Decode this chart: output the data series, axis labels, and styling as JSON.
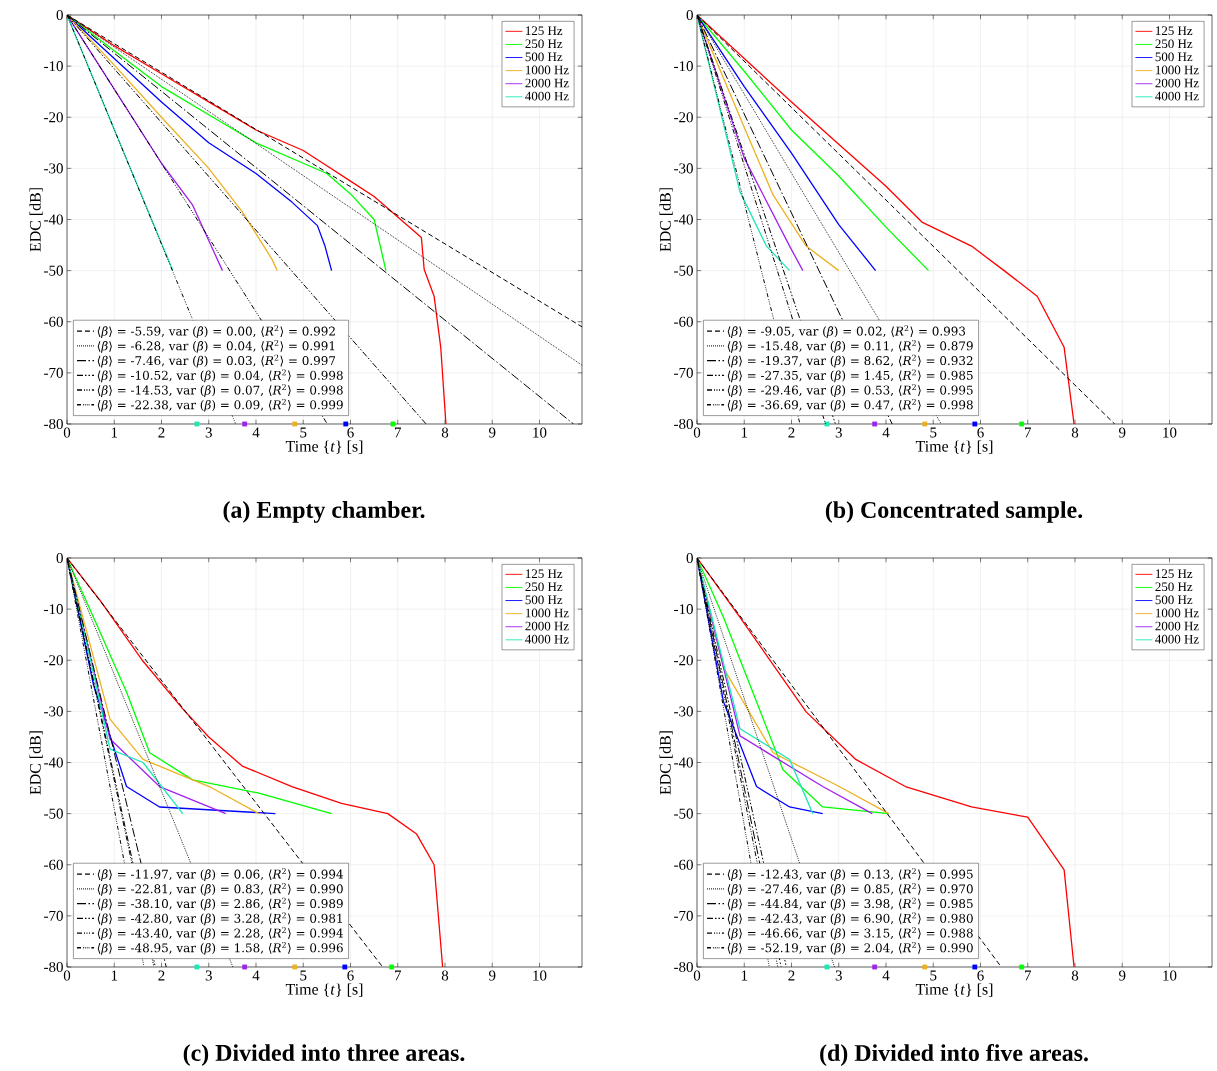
{
  "chart_data": [
    {
      "type": "line",
      "title": "(a) Empty chamber.",
      "xlabel": "Time {*t*} [s]",
      "ylabel": "EDC [dB]",
      "xlim": [
        0,
        10.9
      ],
      "ylim": [
        -80,
        0
      ],
      "xticks": [
        0,
        1,
        2,
        3,
        4,
        5,
        6,
        7,
        8,
        9,
        10
      ],
      "yticks": [
        -80,
        -70,
        -60,
        -50,
        -40,
        -30,
        -20,
        -10,
        0
      ],
      "grid": true,
      "legend": "top right",
      "series": [
        {
          "name": "125 Hz",
          "color": "#ff0000",
          "x": [
            0,
            1,
            2,
            3,
            4,
            5,
            5.5,
            6,
            6.5,
            7,
            7.5,
            7.56,
            7.77,
            7.91,
            8.02
          ],
          "values": [
            0,
            -6,
            -11.5,
            -17,
            -22.5,
            -26.5,
            -29.5,
            -32.5,
            -35.5,
            -39.5,
            -43.5,
            -49.8,
            -55,
            -65,
            -80
          ]
        },
        {
          "name": "250 Hz",
          "color": "#00ff00",
          "x": [
            0,
            1,
            2,
            3,
            4,
            5,
            5.5,
            6,
            6.5,
            6.75
          ],
          "values": [
            0,
            -7,
            -14,
            -19.5,
            -25,
            -29,
            -31,
            -35,
            -40,
            -50
          ]
        },
        {
          "name": "500 Hz",
          "color": "#0000ff",
          "x": [
            0,
            1,
            2,
            3,
            4,
            4.76,
            5.3,
            5.46,
            5.6
          ],
          "values": [
            0,
            -8.5,
            -17,
            -25,
            -31,
            -36.6,
            -41.2,
            -45.2,
            -50
          ]
        },
        {
          "name": "1000 Hz",
          "color": "#edb120",
          "x": [
            0,
            1,
            2,
            3,
            3.71,
            4.34,
            4.45
          ],
          "values": [
            0,
            -9.8,
            -20,
            -30,
            -38.5,
            -47.8,
            -50
          ]
        },
        {
          "name": "2000 Hz",
          "color": "#a020f0",
          "x": [
            0,
            1,
            2,
            2.66,
            3.29
          ],
          "values": [
            0,
            -14.5,
            -29,
            -37.2,
            -50
          ]
        },
        {
          "name": "4000 Hz",
          "color": "#1ce8b5",
          "x": [
            0,
            1,
            2.24
          ],
          "values": [
            0,
            -22.4,
            -50
          ]
        },
        {
          "type": "scatter",
          "marker": "square",
          "x": [
            2.75,
            3.76,
            4.82,
            5.9,
            6.9
          ],
          "values": [
            -80,
            -80,
            -80,
            -80,
            -80
          ],
          "colors": [
            "#1ce8b5",
            "#a020f0",
            "#edb120",
            "#0000ff",
            "#00ff00"
          ]
        },
        {
          "type": "line",
          "color": "#000000",
          "line_style": "dashed",
          "name": "⟨*β*⟩ = -5.59, var (*β*) = 0.00, ⟨*R*$^{2}$⟩ = 0.992",
          "x": [
            0,
            10.9
          ],
          "values": [
            0,
            -61
          ]
        },
        {
          "type": "line",
          "color": "#000000",
          "line_style": "dotted",
          "name": "⟨*β*⟩ = -6.28, var (*β*) = 0.04, ⟨*R*$^{2}$⟩ = 0.991",
          "x": [
            0,
            10.9
          ],
          "values": [
            0,
            -68.5
          ]
        },
        {
          "type": "line",
          "color": "#000000",
          "line_style": "dashdot",
          "name": "⟨*β*⟩ = -7.46, var (*β*) = 0.03, ⟨*R*$^{2}$⟩ = 0.997",
          "x": [
            0,
            10.72
          ],
          "values": [
            0,
            -80
          ]
        },
        {
          "type": "line",
          "color": "#000000",
          "line_style": "dashdotdot",
          "name": "⟨*β*⟩ = -10.52, var (*β*) = 0.04, ⟨*R*$^{2}$⟩ = 0.998",
          "x": [
            0,
            7.6
          ],
          "values": [
            0,
            -80
          ]
        },
        {
          "type": "line",
          "color": "#000000",
          "line_style": "dashdotdotdot",
          "name": "⟨*β*⟩ = -14.53, var (*β*) = 0.07, ⟨*R*$^{2}$⟩ = 0.998",
          "x": [
            0,
            5.51
          ],
          "values": [
            0,
            -80
          ]
        },
        {
          "type": "line",
          "color": "#000000",
          "line_style": "dashdotdotdotdot",
          "name": "⟨*β*⟩ = -22.38, var (*β*) = 0.09, ⟨*R*$^{2}$⟩ = 0.999",
          "x": [
            0,
            3.57
          ],
          "values": [
            0,
            -80
          ]
        }
      ]
    },
    {
      "type": "line",
      "title": "(b) Concentrated sample.",
      "xlabel": "Time {*t*} [s]",
      "ylabel": "EDC [dB]",
      "xlim": [
        0,
        10.9
      ],
      "ylim": [
        -80,
        0
      ],
      "xticks": [
        0,
        1,
        2,
        3,
        4,
        5,
        6,
        7,
        8,
        9,
        10
      ],
      "yticks": [
        -80,
        -70,
        -60,
        -50,
        -40,
        -30,
        -20,
        -10,
        0
      ],
      "grid": true,
      "legend": "top right",
      "series": [
        {
          "name": "125 Hz",
          "color": "#ff0000",
          "x": [
            0,
            1,
            2,
            3,
            4,
            4.76,
            5.81,
            6.5,
            7.2,
            7.77,
            7.98
          ],
          "values": [
            0,
            -8.5,
            -17,
            -25.3,
            -33.5,
            -40.5,
            -45.2,
            -50,
            -55,
            -65,
            -80
          ]
        },
        {
          "name": "250 Hz",
          "color": "#00ff00",
          "x": [
            0,
            1,
            2,
            3,
            4,
            4.9
          ],
          "values": [
            0,
            -11,
            -22.5,
            -31.5,
            -41.5,
            -50
          ]
        },
        {
          "name": "500 Hz",
          "color": "#0000ff",
          "x": [
            0,
            1,
            2,
            3,
            3.78
          ],
          "values": [
            0,
            -14,
            -27,
            -41,
            -50
          ]
        },
        {
          "name": "1000 Hz",
          "color": "#edb120",
          "x": [
            0,
            1,
            1.61,
            2.31,
            3.0
          ],
          "values": [
            0,
            -22,
            -35.2,
            -45.2,
            -50
          ]
        },
        {
          "name": "2000 Hz",
          "color": "#a020f0",
          "x": [
            0,
            1,
            1.96,
            2.24
          ],
          "values": [
            0,
            -28,
            -45.2,
            -50
          ]
        },
        {
          "name": "4000 Hz",
          "color": "#1ce8b5",
          "x": [
            0,
            0.91,
            1.47,
            1.96
          ],
          "values": [
            0,
            -34.6,
            -45.2,
            -50
          ]
        },
        {
          "type": "scatter",
          "marker": "square",
          "x": [
            2.75,
            3.76,
            4.82,
            5.88,
            6.87
          ],
          "values": [
            -80,
            -80,
            -80,
            -80,
            -80
          ],
          "colors": [
            "#1ce8b5",
            "#a020f0",
            "#edb120",
            "#0000ff",
            "#00ff00"
          ]
        },
        {
          "type": "line",
          "color": "#000000",
          "line_style": "dashed",
          "name": "⟨*β*⟩ = -9.05, var (*β*) = 0.02, ⟨*R*$^{2}$⟩ = 0.993",
          "x": [
            0,
            8.84
          ],
          "values": [
            0,
            -80
          ]
        },
        {
          "type": "line",
          "color": "#000000",
          "line_style": "dotted",
          "name": "⟨*β*⟩ = -15.48, var (*β*) = 0.11, ⟨*R*$^{2}$⟩ = 0.879",
          "x": [
            0,
            5.17
          ],
          "values": [
            0,
            -80
          ]
        },
        {
          "type": "line",
          "color": "#000000",
          "line_style": "dashdot",
          "name": "⟨*β*⟩ = -19.37, var (*β*) = 8.62, ⟨*R*$^{2}$⟩ = 0.932",
          "x": [
            0,
            4.13
          ],
          "values": [
            0,
            -80
          ]
        },
        {
          "type": "line",
          "color": "#000000",
          "line_style": "dashdotdot",
          "name": "⟨*β*⟩ = -27.35, var (*β*) = 1.45, ⟨*R*$^{2}$⟩ = 0.985",
          "x": [
            0,
            2.93
          ],
          "values": [
            0,
            -80
          ]
        },
        {
          "type": "line",
          "color": "#000000",
          "line_style": "dashdotdotdot",
          "name": "⟨*β*⟩ = -29.46, var (*β*) = 0.53, ⟨*R*$^{2}$⟩ = 0.995",
          "x": [
            0,
            2.72
          ],
          "values": [
            0,
            -80
          ]
        },
        {
          "type": "line",
          "color": "#000000",
          "line_style": "dashdotdotdotdot",
          "name": "⟨*β*⟩ = -36.69, var (*β*) = 0.47, ⟨*R*$^{2}$⟩ = 0.998",
          "x": [
            0,
            2.18
          ],
          "values": [
            0,
            -80
          ]
        }
      ]
    },
    {
      "type": "line",
      "title": "(c) Divided into three areas.",
      "xlabel": "Time {*t*} [s]",
      "ylabel": "EDC [dB]",
      "xlim": [
        0,
        10.9
      ],
      "ylim": [
        -80,
        0
      ],
      "xticks": [
        0,
        1,
        2,
        3,
        4,
        5,
        6,
        7,
        8,
        9,
        10
      ],
      "yticks": [
        -80,
        -70,
        -60,
        -50,
        -40,
        -30,
        -20,
        -10,
        0
      ],
      "grid": true,
      "legend": "top right",
      "series": [
        {
          "name": "125 Hz",
          "color": "#ff0000",
          "x": [
            0,
            0.7,
            1.61,
            2.45,
            3,
            3.71,
            4.76,
            5.81,
            6.79,
            7.4,
            7.77,
            7.95
          ],
          "values": [
            0,
            -8.3,
            -20.2,
            -29.5,
            -35,
            -40.7,
            -44.7,
            -48,
            -50,
            -54,
            -60,
            -80
          ]
        },
        {
          "name": "250 Hz",
          "color": "#00ff00",
          "x": [
            0,
            0.56,
            1.26,
            1.75,
            2.66,
            4.06,
            5.6
          ],
          "values": [
            0,
            -11.6,
            -26.2,
            -38.1,
            -43.4,
            -46,
            -50
          ]
        },
        {
          "name": "500 Hz",
          "color": "#0000ff",
          "x": [
            0,
            0.56,
            1.26,
            1.96,
            4.41
          ],
          "values": [
            0,
            -24.8,
            -44.7,
            -48.7,
            -50
          ]
        },
        {
          "name": "1000 Hz",
          "color": "#edb120",
          "x": [
            0,
            0.91,
            1.61,
            3.01,
            4.06
          ],
          "values": [
            0,
            -31.5,
            -39.4,
            -44.7,
            -50
          ]
        },
        {
          "name": "2000 Hz",
          "color": "#a020f0",
          "x": [
            0,
            0.91,
            1.96,
            3.36
          ],
          "values": [
            0,
            -35.4,
            -44.7,
            -50
          ]
        },
        {
          "name": "4000 Hz",
          "color": "#1ce8b5",
          "x": [
            0,
            0.5,
            0.91,
            1.61,
            2.45
          ],
          "values": [
            0,
            -20,
            -37.4,
            -40,
            -50
          ]
        },
        {
          "type": "scatter",
          "marker": "square",
          "x": [
            2.75,
            3.76,
            4.82,
            5.88,
            6.87
          ],
          "values": [
            -80,
            -80,
            -80,
            -80,
            -80
          ],
          "colors": [
            "#1ce8b5",
            "#a020f0",
            "#edb120",
            "#0000ff",
            "#00ff00"
          ]
        },
        {
          "type": "line",
          "color": "#000000",
          "line_style": "dashed",
          "name": "⟨*β*⟩ = -11.97, var (*β*) = 0.06, ⟨*R*$^{2}$⟩ = 0.994",
          "x": [
            0,
            6.68
          ],
          "values": [
            0,
            -80
          ]
        },
        {
          "type": "line",
          "color": "#000000",
          "line_style": "dotted",
          "name": "⟨*β*⟩ = -22.81, var (*β*) = 0.83, ⟨*R*$^{2}$⟩ = 0.990",
          "x": [
            0,
            3.51
          ],
          "values": [
            0,
            -80
          ]
        },
        {
          "type": "line",
          "color": "#000000",
          "line_style": "dashdot",
          "name": "⟨*β*⟩ = -38.10, var (*β*) = 2.86, ⟨*R*$^{2}$⟩ = 0.989",
          "x": [
            0,
            2.1
          ],
          "values": [
            0,
            -80
          ]
        },
        {
          "type": "line",
          "color": "#000000",
          "line_style": "dashdotdot",
          "name": "⟨*β*⟩ = -42.80, var (*β*) = 3.28, ⟨*R*$^{2}$⟩ = 0.981",
          "x": [
            0,
            1.87
          ],
          "values": [
            0,
            -80
          ]
        },
        {
          "type": "line",
          "color": "#000000",
          "line_style": "dashdotdotdot",
          "name": "⟨*β*⟩ = -43.40, var (*β*) = 2.28, ⟨*R*$^{2}$⟩ = 0.994",
          "x": [
            0,
            1.84
          ],
          "values": [
            0,
            -80
          ]
        },
        {
          "type": "line",
          "color": "#000000",
          "line_style": "dashdotdotdotdot",
          "name": "⟨*β*⟩ = -48.95, var (*β*) = 1.58, ⟨*R*$^{2}$⟩ = 0.996",
          "x": [
            0,
            1.63
          ],
          "values": [
            0,
            -80
          ]
        }
      ]
    },
    {
      "type": "line",
      "title": "(d) Divided into five areas.",
      "xlabel": "Time {*t*} [s]",
      "ylabel": "EDC [dB]",
      "xlim": [
        0,
        10.9
      ],
      "ylim": [
        -80,
        0
      ],
      "xticks": [
        0,
        1,
        2,
        3,
        4,
        5,
        6,
        7,
        8,
        9,
        10
      ],
      "yticks": [
        -80,
        -70,
        -60,
        -50,
        -40,
        -30,
        -20,
        -10,
        0
      ],
      "grid": true,
      "legend": "top right",
      "series": [
        {
          "name": "125 Hz",
          "color": "#ff0000",
          "x": [
            0,
            0.91,
            2.31,
            3.36,
            4.41,
            5.81,
            7,
            7.77,
            7.98
          ],
          "values": [
            0,
            -11.6,
            -30.1,
            -39.4,
            -44.7,
            -48.7,
            -50.7,
            -61,
            -80
          ]
        },
        {
          "name": "250 Hz",
          "color": "#00ff00",
          "x": [
            0,
            0.56,
            1.26,
            1.82,
            2.66,
            4.06
          ],
          "values": [
            0,
            -11.6,
            -28.1,
            -41.4,
            -48.7,
            -50
          ]
        },
        {
          "name": "500 Hz",
          "color": "#0000ff",
          "x": [
            0,
            0.56,
            1.26,
            1.96,
            2.66
          ],
          "values": [
            0,
            -28.1,
            -44.7,
            -48.7,
            -50
          ]
        },
        {
          "name": "1000 Hz",
          "color": "#edb120",
          "x": [
            0,
            0.56,
            1.61,
            3.01,
            4.06
          ],
          "values": [
            0,
            -21.5,
            -38.1,
            -44.7,
            -50
          ]
        },
        {
          "name": "2000 Hz",
          "color": "#a020f0",
          "x": [
            0,
            0.91,
            2.66,
            3.71
          ],
          "values": [
            0,
            -34.8,
            -44.7,
            -50
          ]
        },
        {
          "name": "4000 Hz",
          "color": "#1ce8b5",
          "x": [
            0,
            0.91,
            1.96,
            2.45
          ],
          "values": [
            0,
            -33.4,
            -39.4,
            -50
          ]
        },
        {
          "type": "scatter",
          "marker": "square",
          "x": [
            2.75,
            3.76,
            4.82,
            5.88,
            6.87
          ],
          "values": [
            -80,
            -80,
            -80,
            -80,
            -80
          ],
          "colors": [
            "#1ce8b5",
            "#a020f0",
            "#edb120",
            "#0000ff",
            "#00ff00"
          ]
        },
        {
          "type": "line",
          "color": "#000000",
          "line_style": "dashed",
          "name": "⟨*β*⟩ = -12.43, var (*β*) = 0.13, ⟨*R*$^{2}$⟩ = 0.995",
          "x": [
            0,
            6.44
          ],
          "values": [
            0,
            -80
          ]
        },
        {
          "type": "line",
          "color": "#000000",
          "line_style": "dotted",
          "name": "⟨*β*⟩ = -27.46, var (*β*) = 0.85, ⟨*R*$^{2}$⟩ = 0.970",
          "x": [
            0,
            2.91
          ],
          "values": [
            0,
            -80
          ]
        },
        {
          "type": "line",
          "color": "#000000",
          "line_style": "dashdot",
          "name": "⟨*β*⟩ = -44.84, var (*β*) = 3.98, ⟨*R*$^{2}$⟩ = 0.985",
          "x": [
            0,
            1.78
          ],
          "values": [
            0,
            -80
          ]
        },
        {
          "type": "line",
          "color": "#000000",
          "line_style": "dashdotdot",
          "name": "⟨*β*⟩ = -42.43, var (*β*) = 6.90, ⟨*R*$^{2}$⟩ = 0.980",
          "x": [
            0,
            1.89
          ],
          "values": [
            0,
            -80
          ]
        },
        {
          "type": "line",
          "color": "#000000",
          "line_style": "dashdotdotdot",
          "name": "⟨*β*⟩ = -46.66, var (*β*) = 3.15, ⟨*R*$^{2}$⟩ = 0.988",
          "x": [
            0,
            1.71
          ],
          "values": [
            0,
            -80
          ]
        },
        {
          "type": "line",
          "color": "#000000",
          "line_style": "dashdotdotdotdot",
          "name": "⟨*β*⟩ = -52.19, var (*β*) = 2.04, ⟨*R*$^{2}$⟩ = 0.990",
          "x": [
            0,
            1.53
          ],
          "values": [
            0,
            -80
          ]
        }
      ]
    }
  ]
}
